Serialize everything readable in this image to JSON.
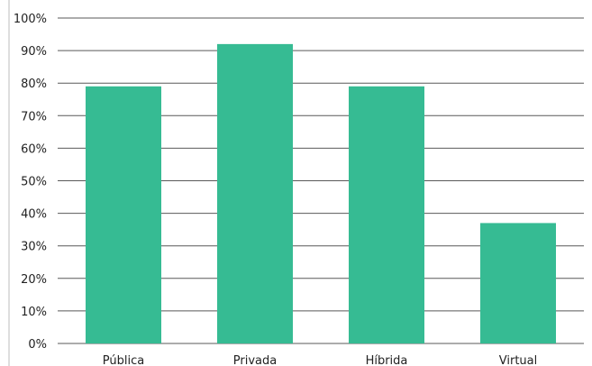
{
  "chart_data": {
    "type": "bar",
    "categories": [
      "Pública",
      "Privada",
      "Híbrida",
      "Virtual"
    ],
    "values": [
      79,
      92,
      79,
      37
    ],
    "ylim": [
      0,
      100
    ],
    "yticks": [
      0,
      10,
      20,
      30,
      40,
      50,
      60,
      70,
      80,
      90,
      100
    ],
    "ytick_format": "%",
    "grid": true,
    "bar_color": "#36bb93",
    "grid_color": "#595959"
  }
}
